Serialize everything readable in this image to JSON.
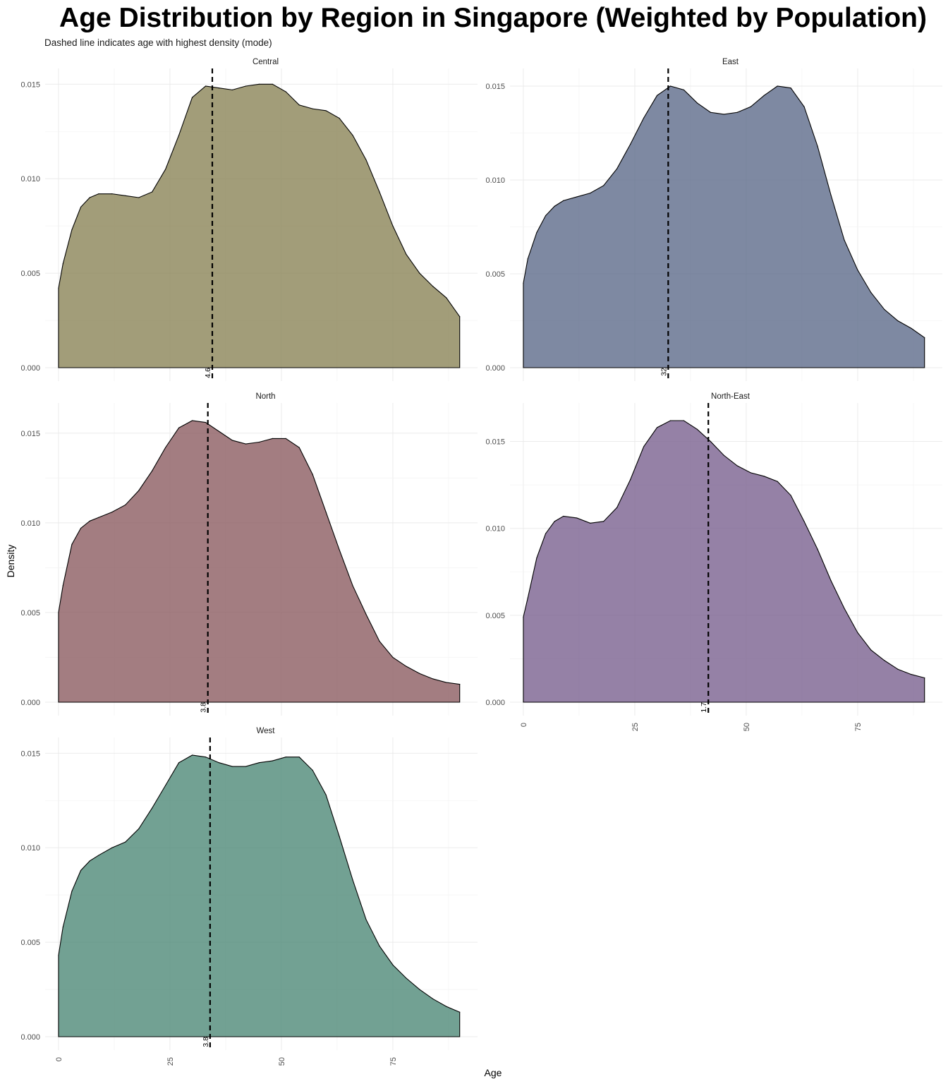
{
  "chart_data": {
    "type": "area",
    "title": "Age Distribution by Region in Singapore (Weighted by Population)",
    "subtitle": "Dashed line indicates age with highest density (mode)",
    "xlabel": "Age",
    "ylabel": "Density",
    "xlim": [
      -3,
      94
    ],
    "x_ticks": [
      0,
      25,
      50,
      75
    ],
    "y_ticks": [
      0.0,
      0.005,
      0.01,
      0.015
    ],
    "y_tick_labels": [
      "0.000",
      "0.005",
      "0.010",
      "0.015"
    ],
    "grid": true,
    "legend": "none",
    "x": [
      0,
      1,
      3,
      5,
      7,
      9,
      12,
      15,
      18,
      21,
      24,
      27,
      30,
      33,
      36,
      39,
      42,
      45,
      48,
      51,
      54,
      57,
      60,
      63,
      66,
      69,
      72,
      75,
      78,
      81,
      84,
      87,
      90
    ],
    "panels": [
      {
        "name": "Central",
        "color": "#8b8458",
        "ylim": [
          0,
          0.0149
        ],
        "mode_label": "4.6",
        "mode_x": 34.5,
        "values": [
          0.0042,
          0.0055,
          0.0073,
          0.0085,
          0.009,
          0.0092,
          0.0092,
          0.0091,
          0.009,
          0.0093,
          0.0105,
          0.0123,
          0.0143,
          0.0149,
          0.0148,
          0.0147,
          0.0149,
          0.015,
          0.015,
          0.0146,
          0.0139,
          0.0137,
          0.0136,
          0.0132,
          0.0123,
          0.011,
          0.0093,
          0.0075,
          0.006,
          0.005,
          0.0043,
          0.0037,
          0.0027
        ]
      },
      {
        "name": "East",
        "color": "#5e6b8b",
        "ylim": [
          0,
          0.015
        ],
        "mode_label": "32",
        "mode_x": 32.5,
        "values": [
          0.0045,
          0.0058,
          0.0072,
          0.0081,
          0.0086,
          0.0089,
          0.0091,
          0.0093,
          0.0097,
          0.0106,
          0.0119,
          0.0133,
          0.0145,
          0.015,
          0.0148,
          0.0141,
          0.0136,
          0.0135,
          0.0136,
          0.0139,
          0.0145,
          0.015,
          0.0149,
          0.0139,
          0.0118,
          0.0092,
          0.0068,
          0.0052,
          0.004,
          0.0031,
          0.0025,
          0.0021,
          0.0016
        ]
      },
      {
        "name": "North",
        "color": "#8c5c62",
        "ylim": [
          0,
          0.0157
        ],
        "mode_label": "3.8",
        "mode_x": 33.5,
        "values": [
          0.005,
          0.0065,
          0.0088,
          0.0097,
          0.0101,
          0.0103,
          0.0106,
          0.011,
          0.0118,
          0.0129,
          0.0142,
          0.0153,
          0.0157,
          0.0156,
          0.0151,
          0.0146,
          0.0144,
          0.0145,
          0.0147,
          0.0147,
          0.0142,
          0.0127,
          0.0106,
          0.0085,
          0.0065,
          0.0049,
          0.0034,
          0.0025,
          0.002,
          0.0016,
          0.0013,
          0.0011,
          0.001
        ]
      },
      {
        "name": "North-East",
        "color": "#7a6290",
        "ylim": [
          0,
          0.0162
        ],
        "mode_label": "1.7",
        "mode_x": 41.5,
        "values": [
          0.0049,
          0.006,
          0.0083,
          0.0097,
          0.0104,
          0.0107,
          0.0106,
          0.0103,
          0.0104,
          0.0112,
          0.0128,
          0.0147,
          0.0158,
          0.0162,
          0.0162,
          0.0157,
          0.015,
          0.0142,
          0.0136,
          0.0132,
          0.013,
          0.0127,
          0.0119,
          0.0104,
          0.0088,
          0.007,
          0.0054,
          0.004,
          0.003,
          0.0024,
          0.0019,
          0.0016,
          0.0014
        ]
      },
      {
        "name": "West",
        "color": "#4f8a78",
        "ylim": [
          0,
          0.0149
        ],
        "mode_label": "3.8",
        "mode_x": 34.0,
        "values": [
          0.0043,
          0.0058,
          0.0077,
          0.0088,
          0.0093,
          0.0096,
          0.01,
          0.0103,
          0.011,
          0.0121,
          0.0133,
          0.0145,
          0.0149,
          0.0148,
          0.0145,
          0.0143,
          0.0143,
          0.0145,
          0.0146,
          0.0148,
          0.0148,
          0.0141,
          0.0128,
          0.0106,
          0.0083,
          0.0062,
          0.0048,
          0.0038,
          0.0031,
          0.0025,
          0.002,
          0.0016,
          0.0013
        ]
      }
    ]
  }
}
